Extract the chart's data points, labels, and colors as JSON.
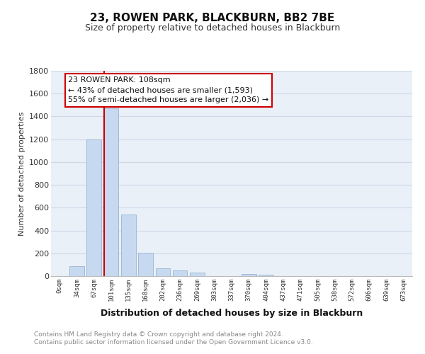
{
  "title": "23, ROWEN PARK, BLACKBURN, BB2 7BE",
  "subtitle": "Size of property relative to detached houses in Blackburn",
  "xlabel": "Distribution of detached houses by size in Blackburn",
  "ylabel": "Number of detached properties",
  "bar_labels": [
    "0sqm",
    "34sqm",
    "67sqm",
    "101sqm",
    "135sqm",
    "168sqm",
    "202sqm",
    "236sqm",
    "269sqm",
    "303sqm",
    "337sqm",
    "370sqm",
    "404sqm",
    "437sqm",
    "471sqm",
    "505sqm",
    "538sqm",
    "572sqm",
    "606sqm",
    "639sqm",
    "673sqm"
  ],
  "bar_values": [
    0,
    90,
    1200,
    1470,
    540,
    205,
    70,
    48,
    30,
    0,
    0,
    20,
    10,
    0,
    0,
    0,
    0,
    0,
    0,
    0,
    0
  ],
  "bar_color": "#c6d9f1",
  "bar_edge_color": "#9bb4d0",
  "annotation_line1": "23 ROWEN PARK: 108sqm",
  "annotation_line2": "← 43% of detached houses are smaller (1,593)",
  "annotation_line3": "55% of semi-detached houses are larger (2,036) →",
  "annotation_box_color": "#ffffff",
  "annotation_box_edge_color": "#cc0000",
  "vline_color": "#cc0000",
  "vline_x_index": 3,
  "ylim": [
    0,
    1800
  ],
  "yticks": [
    0,
    200,
    400,
    600,
    800,
    1000,
    1200,
    1400,
    1600,
    1800
  ],
  "grid_color": "#d0d8e8",
  "footer_text": "Contains HM Land Registry data © Crown copyright and database right 2024.\nContains public sector information licensed under the Open Government Licence v3.0.",
  "background_color": "#ffffff",
  "plot_bg_color": "#eaf0f8"
}
